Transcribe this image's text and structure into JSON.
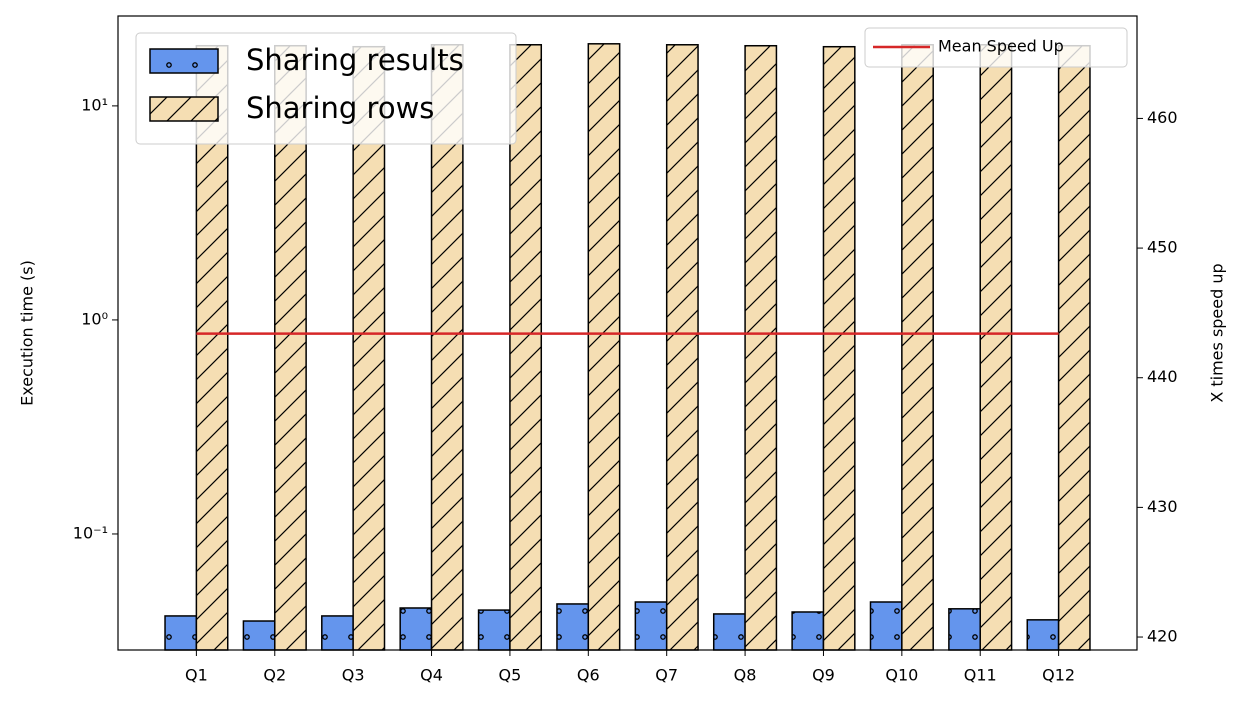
{
  "chart_data": {
    "type": "bar",
    "categories": [
      "Q1",
      "Q2",
      "Q3",
      "Q4",
      "Q5",
      "Q6",
      "Q7",
      "Q8",
      "Q9",
      "Q10",
      "Q11",
      "Q12"
    ],
    "series": [
      {
        "name": "Sharing results",
        "color": "#6495ed",
        "hatch": "o",
        "values": [
          0.0414,
          0.0392,
          0.0414,
          0.0451,
          0.0441,
          0.0471,
          0.0481,
          0.0423,
          0.0432,
          0.0481,
          0.0447,
          0.0397
        ]
      },
      {
        "name": "Sharing rows",
        "color": "#f5deb3",
        "hatch": "/",
        "values": [
          19.1,
          19.1,
          18.9,
          19.3,
          19.3,
          19.5,
          19.3,
          19.1,
          18.9,
          19.3,
          19.3,
          19.1
        ]
      },
      {
        "name": "Mean Speed Up",
        "color": "#d62728",
        "type": "line",
        "axis": "y2",
        "values": [
          443.4,
          443.4,
          443.4,
          443.4,
          443.4,
          443.4,
          443.4,
          443.4,
          443.4,
          443.4,
          443.4,
          443.4
        ]
      }
    ],
    "ylabel": "Execution time (s)",
    "y2label": "X times speed up",
    "yscale": "log",
    "ylim": [
      0.0287,
      26.3
    ],
    "yticks": [
      {
        "value": 0.1,
        "label": "10⁻¹"
      },
      {
        "value": 1,
        "label": "10⁰"
      },
      {
        "value": 10,
        "label": "10¹"
      }
    ],
    "y2lim": [
      419.0,
      467.9
    ],
    "y2ticks": [
      420,
      430,
      440,
      450,
      460
    ],
    "legend": "upper left",
    "legend2": "upper right"
  }
}
